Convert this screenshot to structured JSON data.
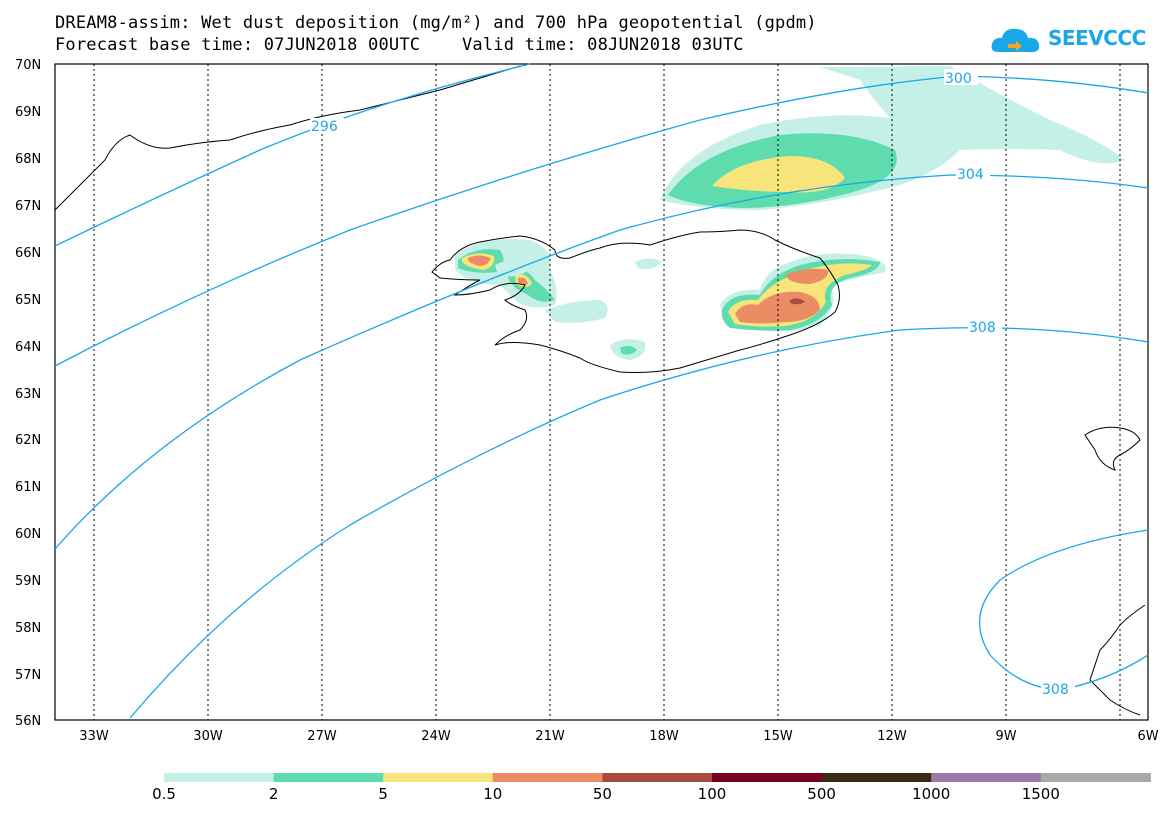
{
  "header": {
    "title_line1": "DREAM8-assim: Wet dust deposition (mg/m²) and 700 hPa geopotential (gpdm)",
    "title_line2": "Forecast base time: 07JUN2018 00UTC    Valid time: 08JUN2018 03UTC"
  },
  "logo": {
    "text": "SEEVCCC",
    "icon": "cloud-logo-icon",
    "color": "#1aa7e8"
  },
  "axes": {
    "lat_labels": [
      "70N",
      "69N",
      "68N",
      "67N",
      "66N",
      "65N",
      "64N",
      "63N",
      "62N",
      "61N",
      "60N",
      "59N",
      "58N",
      "57N",
      "56N"
    ],
    "lon_labels": [
      "33W",
      "30W",
      "27W",
      "24W",
      "21W",
      "18W",
      "15W",
      "12W",
      "9W",
      "6W"
    ]
  },
  "contours": {
    "color": "#1aa7e8",
    "labels": [
      "296",
      "300",
      "304",
      "308",
      "308"
    ]
  },
  "colorbar": {
    "colors": [
      "#c4f0e8",
      "#5fdcae",
      "#f7e47a",
      "#ea8c64",
      "#a84b41",
      "#7a0020",
      "#3d2a14",
      "#9b7aa8",
      "#a8a8a8"
    ],
    "labels": [
      "0.5",
      "2",
      "5",
      "10",
      "50",
      "100",
      "500",
      "1000",
      "1500"
    ]
  }
}
